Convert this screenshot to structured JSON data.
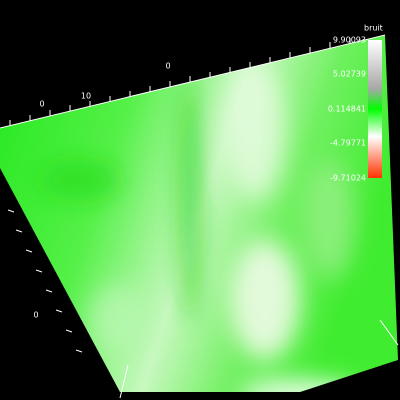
{
  "axis_labels": [
    "0",
    "10",
    "0",
    "0"
  ],
  "colorbar": {
    "title": "bruit",
    "labels": [
      "9.90093",
      "5.02739",
      "0.114841",
      "-4.79771",
      "-9.71024"
    ]
  }
}
